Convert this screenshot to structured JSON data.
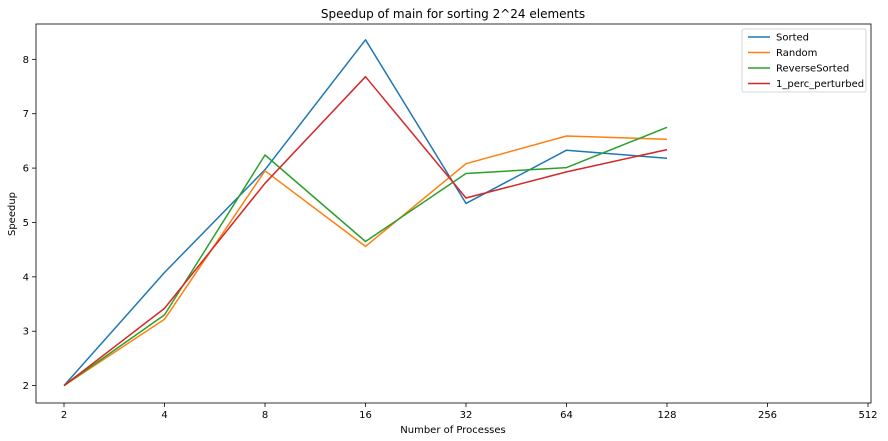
{
  "chart_data": {
    "type": "line",
    "title": "Speedup of main for sorting 2^24 elements",
    "xlabel": "Number of Processes",
    "ylabel": "Speedup",
    "x_scale": "log2",
    "x_ticks": [
      2,
      4,
      8,
      16,
      32,
      64,
      128,
      256,
      512
    ],
    "x_tick_labels": [
      "2",
      "4",
      "8",
      "16",
      "32",
      "64",
      "128",
      "256",
      "512"
    ],
    "xlim": [
      2,
      512
    ],
    "y_ticks": [
      2,
      3,
      4,
      5,
      6,
      7,
      8
    ],
    "y_tick_labels": [
      "2",
      "3",
      "4",
      "5",
      "6",
      "7",
      "8"
    ],
    "ylim": [
      1.68,
      8.65
    ],
    "grid": false,
    "legend_position": "top-right",
    "x": [
      2,
      4,
      8,
      16,
      32,
      64,
      128
    ],
    "series": [
      {
        "name": "Sorted",
        "color": "#1f77b4",
        "values": [
          2.0,
          4.08,
          5.97,
          8.36,
          5.35,
          6.33,
          6.18
        ]
      },
      {
        "name": "Random",
        "color": "#ff7f0e",
        "values": [
          2.0,
          3.22,
          5.95,
          4.56,
          6.08,
          6.59,
          6.53
        ]
      },
      {
        "name": "ReverseSorted",
        "color": "#2ca02c",
        "values": [
          2.0,
          3.3,
          6.24,
          4.65,
          5.9,
          6.01,
          6.75
        ]
      },
      {
        "name": "1_perc_perturbed",
        "color": "#d62728",
        "values": [
          2.0,
          3.42,
          5.72,
          7.68,
          5.45,
          5.93,
          6.34
        ]
      }
    ]
  }
}
